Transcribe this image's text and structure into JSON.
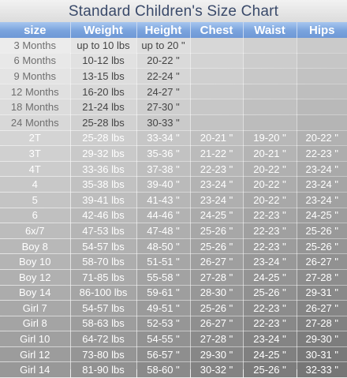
{
  "title": "Standard Children's Size Chart",
  "columns": [
    "size",
    "Weight",
    "Height",
    "Chest",
    "Waist",
    "Hips"
  ],
  "rows": [
    [
      "3 Months",
      "up to 10 lbs",
      "up to 20 \"",
      "",
      "",
      ""
    ],
    [
      "6 Months",
      "10-12 lbs",
      "20-22 \"",
      "",
      "",
      ""
    ],
    [
      "9 Months",
      "13-15 lbs",
      "22-24 \"",
      "",
      "",
      ""
    ],
    [
      "12 Months",
      "16-20 lbs",
      "24-27 \"",
      "",
      "",
      ""
    ],
    [
      "18 Months",
      "21-24 lbs",
      "27-30 \"",
      "",
      "",
      ""
    ],
    [
      "24 Months",
      "25-28 lbs",
      "30-33 \"",
      "",
      "",
      ""
    ],
    [
      "2T",
      "25-28 lbs",
      "33-34 \"",
      "20-21 \"",
      "19-20 \"",
      "20-22 \""
    ],
    [
      "3T",
      "29-32 lbs",
      "35-36 \"",
      "21-22 \"",
      "20-21 \"",
      "22-23 \""
    ],
    [
      "4T",
      "33-36 lbs",
      "37-38 \"",
      "22-23 \"",
      "20-22 \"",
      "23-24 \""
    ],
    [
      "4",
      "35-38 lbs",
      "39-40 \"",
      "23-24 \"",
      "20-22 \"",
      "23-24 \""
    ],
    [
      "5",
      "39-41 lbs",
      "41-43 \"",
      "23-24 \"",
      "20-22 \"",
      "23-24 \""
    ],
    [
      "6",
      "42-46 lbs",
      "44-46 \"",
      "24-25 \"",
      "22-23 \"",
      "24-25 \""
    ],
    [
      "6x/7",
      "47-53 lbs",
      "47-48 \"",
      "25-26 \"",
      "22-23 \"",
      "25-26 \""
    ],
    [
      "Boy 8",
      "54-57 lbs",
      "48-50 \"",
      "25-26 \"",
      "22-23 \"",
      "25-26 \""
    ],
    [
      "Boy 10",
      "58-70 lbs",
      "51-51 \"",
      "26-27 \"",
      "23-24 \"",
      "26-27 \""
    ],
    [
      "Boy 12",
      "71-85 lbs",
      "55-58 \"",
      "27-28 \"",
      "24-25 \"",
      "27-28 \""
    ],
    [
      "Boy 14",
      "86-100 lbs",
      "59-61 \"",
      "28-30 \"",
      "25-26 \"",
      "29-31 \""
    ],
    [
      "Girl 7",
      "54-57 lbs",
      "49-51 \"",
      "25-26 \"",
      "22-23 \"",
      "26-27 \""
    ],
    [
      "Girl 8",
      "58-63 lbs",
      "52-53 \"",
      "26-27 \"",
      "22-23 \"",
      "27-28 \""
    ],
    [
      "Girl 10",
      "64-72 lbs",
      "54-55 \"",
      "27-28 \"",
      "23-24 \"",
      "29-30 \""
    ],
    [
      "Girl 12",
      "73-80 lbs",
      "56-57 \"",
      "29-30 \"",
      "24-25 \"",
      "30-31 \""
    ],
    [
      "Girl 14",
      "81-90 lbs",
      "58-60 \"",
      "30-32 \"",
      "25-26 \"",
      "32-33 \""
    ]
  ]
}
